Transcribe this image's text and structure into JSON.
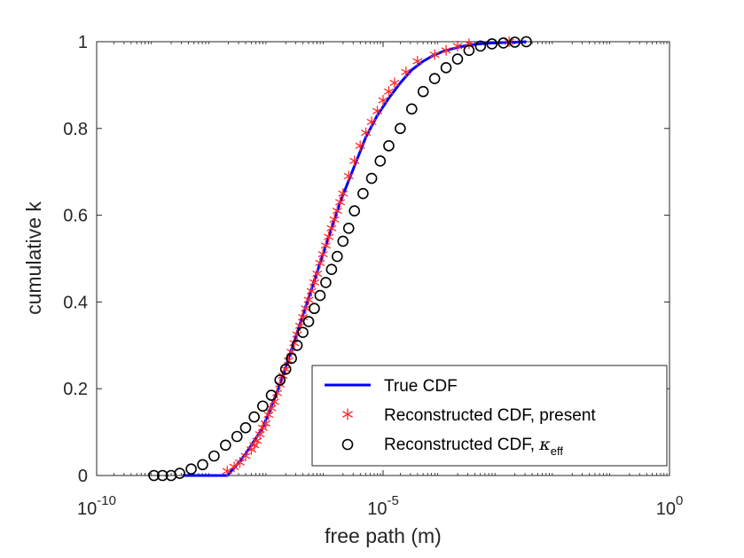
{
  "chart_data": {
    "type": "line",
    "title": "",
    "xlabel": "free path (m)",
    "ylabel": "cumulative k",
    "xscale": "log",
    "xlim_exponent": [
      -10,
      0
    ],
    "ylim": [
      0,
      1
    ],
    "x_ticks": [
      {
        "base": "10",
        "exp": "-10",
        "value": -10
      },
      {
        "base": "10",
        "exp": "-5",
        "value": -5
      },
      {
        "base": "10",
        "exp": "0",
        "value": 0
      }
    ],
    "y_ticks": [
      {
        "label": "0",
        "value": 0
      },
      {
        "label": "0.2",
        "value": 0.2
      },
      {
        "label": "0.4",
        "value": 0.4
      },
      {
        "label": "0.6",
        "value": 0.6
      },
      {
        "label": "0.8",
        "value": 0.8
      },
      {
        "label": "1",
        "value": 1
      }
    ],
    "legend": {
      "position": "bottom-right",
      "entries": [
        {
          "label": "True CDF",
          "marker": "line",
          "color": "#0000ff"
        },
        {
          "label": "Reconstructed CDF, present",
          "marker": "asterisk",
          "color": "#ff2a2a"
        },
        {
          "label": "Reconstructed CDF, ",
          "symbol": "κ",
          "subscript": "eff",
          "marker": "circle",
          "color": "#000000"
        }
      ]
    },
    "series": [
      {
        "name": "True CDF",
        "style": "line",
        "color": "#0000ff",
        "log10_x": [
          -8.5,
          -7.72,
          -7.55,
          -7.4,
          -7.25,
          -7.1,
          -6.95,
          -6.8,
          -6.65,
          -6.5,
          -6.35,
          -6.2,
          -6.05,
          -5.9,
          -5.75,
          -5.6,
          -5.45,
          -5.3,
          -5.1,
          -4.9,
          -4.7,
          -4.5,
          -4.3,
          -4.1,
          -3.9,
          -3.7,
          -3.5,
          -3.3,
          -3.1,
          -2.9,
          -2.7,
          -2.5
        ],
        "y": [
          0,
          0,
          0.025,
          0.05,
          0.08,
          0.11,
          0.16,
          0.21,
          0.27,
          0.33,
          0.39,
          0.45,
          0.51,
          0.57,
          0.63,
          0.68,
          0.73,
          0.78,
          0.83,
          0.87,
          0.905,
          0.935,
          0.955,
          0.97,
          0.98,
          0.987,
          0.992,
          0.995,
          0.997,
          0.998,
          0.999,
          1.0
        ]
      },
      {
        "name": "Reconstructed CDF, present",
        "style": "asterisk",
        "color": "#ff2a2a",
        "log10_x": [
          -7.72,
          -7.6,
          -7.5,
          -7.4,
          -7.3,
          -7.25,
          -7.2,
          -7.15,
          -7.1,
          -7.05,
          -7.0,
          -6.95,
          -6.9,
          -6.85,
          -6.8,
          -6.75,
          -6.7,
          -6.65,
          -6.6,
          -6.55,
          -6.5,
          -6.45,
          -6.4,
          -6.35,
          -6.3,
          -6.25,
          -6.2,
          -6.15,
          -6.1,
          -6.05,
          -6.0,
          -5.95,
          -5.9,
          -5.85,
          -5.8,
          -5.75,
          -5.7,
          -5.6,
          -5.5,
          -5.4,
          -5.3,
          -5.2,
          -5.1,
          -5.0,
          -4.9,
          -4.8,
          -4.6,
          -4.4,
          -4.1,
          -3.9,
          -3.7,
          -3.5,
          -2.8
        ],
        "y": [
          0.01,
          0.02,
          0.03,
          0.045,
          0.06,
          0.07,
          0.08,
          0.095,
          0.11,
          0.12,
          0.14,
          0.155,
          0.17,
          0.19,
          0.21,
          0.23,
          0.245,
          0.265,
          0.285,
          0.305,
          0.325,
          0.345,
          0.365,
          0.385,
          0.405,
          0.425,
          0.445,
          0.465,
          0.49,
          0.51,
          0.53,
          0.55,
          0.57,
          0.59,
          0.61,
          0.63,
          0.65,
          0.69,
          0.725,
          0.76,
          0.79,
          0.815,
          0.84,
          0.865,
          0.885,
          0.905,
          0.93,
          0.955,
          0.97,
          0.98,
          0.99,
          0.995,
          1.0
        ]
      },
      {
        "name": "Reconstructed CDF, κ_eff",
        "style": "circle",
        "color": "#000000",
        "log10_x": [
          -9.0,
          -8.85,
          -8.7,
          -8.55,
          -8.35,
          -8.15,
          -7.95,
          -7.75,
          -7.55,
          -7.4,
          -7.25,
          -7.1,
          -6.95,
          -6.8,
          -6.7,
          -6.6,
          -6.5,
          -6.4,
          -6.3,
          -6.2,
          -6.1,
          -6.0,
          -5.9,
          -5.8,
          -5.7,
          -5.6,
          -5.5,
          -5.35,
          -5.2,
          -5.05,
          -4.9,
          -4.7,
          -4.5,
          -4.3,
          -4.1,
          -3.9,
          -3.7,
          -3.5,
          -3.3,
          -3.1,
          -2.9,
          -2.7,
          -2.5
        ],
        "y": [
          0,
          0,
          0,
          0.005,
          0.015,
          0.025,
          0.045,
          0.07,
          0.09,
          0.11,
          0.135,
          0.16,
          0.185,
          0.22,
          0.245,
          0.27,
          0.3,
          0.33,
          0.355,
          0.385,
          0.415,
          0.445,
          0.475,
          0.505,
          0.54,
          0.57,
          0.61,
          0.65,
          0.685,
          0.725,
          0.76,
          0.8,
          0.845,
          0.885,
          0.915,
          0.94,
          0.96,
          0.98,
          0.99,
          0.995,
          0.997,
          0.999,
          1.0
        ]
      }
    ]
  }
}
